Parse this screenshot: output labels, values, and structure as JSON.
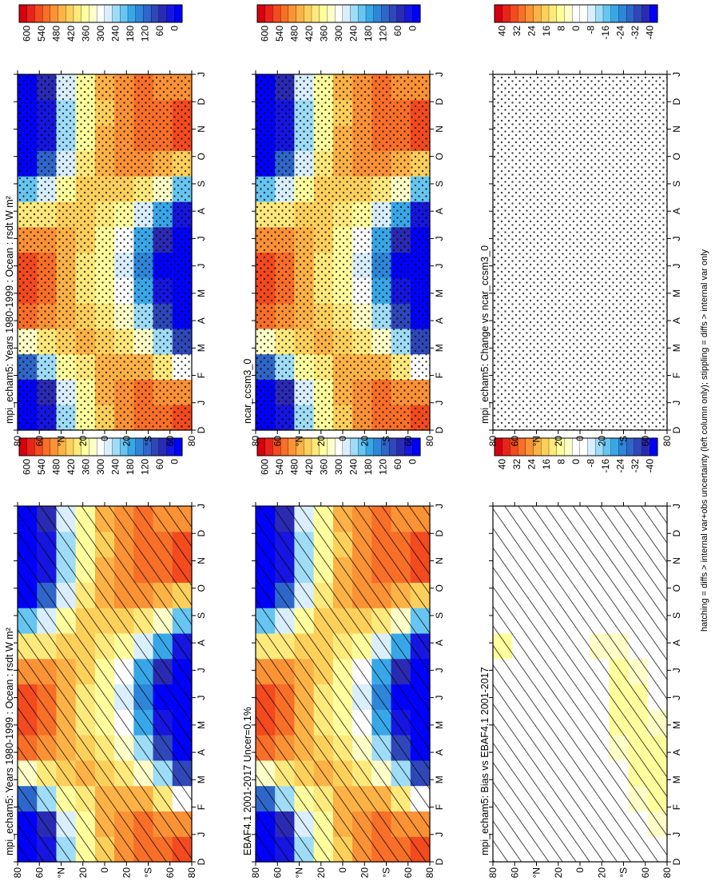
{
  "footer_note": "hatching = diffs > internal var+obs uncertainty (left column only); stippling = diffs > internal var only",
  "months": [
    "D",
    "J",
    "F",
    "M",
    "A",
    "M",
    "J",
    "J",
    "A",
    "S",
    "O",
    "N",
    "D",
    "J"
  ],
  "lat_labels": [
    "80",
    "60",
    "°N",
    "20",
    "0",
    "20",
    "°S",
    "60",
    "80"
  ],
  "abs_colorbar": {
    "labels": [
      "600",
      "540",
      "480",
      "420",
      "360",
      "300",
      "240",
      "180",
      "120",
      "60",
      "0"
    ],
    "colors": [
      "#d7000f",
      "#e8231c",
      "#f34a1e",
      "#f86f28",
      "#fa9236",
      "#fcb246",
      "#fdd05c",
      "#fee97c",
      "#ffff9e",
      "#ffffc8",
      "#ffffff",
      "#d9efff",
      "#9fdcf7",
      "#66c6f1",
      "#38a7e8",
      "#2d86d9",
      "#2f66c9",
      "#2f47b8",
      "#2a2ab3",
      "#1616e0",
      "#0000ff"
    ]
  },
  "diff_colorbar": {
    "labels": [
      "40",
      "32",
      "24",
      "16",
      "8",
      "0",
      "-8",
      "-16",
      "-24",
      "-32",
      "-40"
    ],
    "colors": [
      "#d7000f",
      "#e8231c",
      "#f34a1e",
      "#f86f28",
      "#fa9236",
      "#fcb246",
      "#fdd05c",
      "#fee97c",
      "#ffff9e",
      "#ffffc8",
      "#ffffff",
      "#ffffff",
      "#d9efff",
      "#9fdcf7",
      "#66c6f1",
      "#38a7e8",
      "#2d86d9",
      "#2f66c9",
      "#2f47b8",
      "#2a2ab3",
      "#0000ff"
    ]
  },
  "chart_data": [
    {
      "type": "heatmap",
      "panel": "left-top",
      "title": "mpi_echam5: Years 1980-1999 : Ocean : rsdt W m²",
      "field": "absolute",
      "x": [
        "D",
        "J",
        "F",
        "M",
        "A",
        "M",
        "J",
        "J",
        "A",
        "S",
        "O",
        "N",
        "D",
        "J"
      ],
      "y_range": [
        -80,
        80
      ],
      "clim": [
        0,
        600
      ],
      "overlay": "hatching",
      "lat_centers": [
        80,
        60,
        40,
        20,
        0,
        -20,
        -40,
        -60,
        -80
      ],
      "values_dec_to_jan": [
        [
          0,
          0,
          130,
          330,
          500,
          540,
          520,
          480,
          380,
          210,
          0,
          0,
          0,
          0
        ],
        [
          50,
          80,
          230,
          400,
          470,
          500,
          490,
          460,
          400,
          280,
          120,
          50,
          50,
          80
        ],
        [
          250,
          270,
          360,
          420,
          440,
          440,
          440,
          440,
          420,
          370,
          280,
          240,
          250,
          270
        ],
        [
          350,
          360,
          400,
          430,
          420,
          400,
          390,
          410,
          420,
          410,
          380,
          350,
          350,
          360
        ],
        [
          420,
          430,
          440,
          420,
          390,
          360,
          350,
          370,
          400,
          420,
          430,
          430,
          420,
          430
        ],
        [
          470,
          470,
          450,
          400,
          340,
          290,
          270,
          300,
          360,
          420,
          460,
          480,
          470,
          470
        ],
        [
          500,
          490,
          430,
          340,
          250,
          180,
          160,
          200,
          280,
          380,
          460,
          500,
          500,
          490
        ],
        [
          510,
          480,
          380,
          240,
          110,
          30,
          10,
          60,
          180,
          320,
          450,
          510,
          510,
          480
        ],
        [
          520,
          460,
          300,
          110,
          0,
          0,
          0,
          0,
          40,
          210,
          420,
          520,
          520,
          460
        ]
      ]
    },
    {
      "type": "heatmap",
      "panel": "left-middle",
      "title": "EBAF4.1 2001-2017 Uncer=0.1%",
      "field": "absolute",
      "x": [
        "D",
        "J",
        "F",
        "M",
        "A",
        "M",
        "J",
        "J",
        "A",
        "S",
        "O",
        "N",
        "D",
        "J"
      ],
      "y_range": [
        -80,
        80
      ],
      "clim": [
        0,
        600
      ],
      "overlay": "hatching",
      "lat_centers": [
        80,
        60,
        40,
        20,
        0,
        -20,
        -40,
        -60,
        -80
      ],
      "values_dec_to_jan": [
        [
          0,
          0,
          130,
          330,
          500,
          540,
          520,
          480,
          380,
          210,
          0,
          0,
          0,
          0
        ],
        [
          50,
          80,
          230,
          400,
          470,
          500,
          490,
          460,
          400,
          280,
          120,
          50,
          50,
          80
        ],
        [
          250,
          270,
          360,
          420,
          440,
          440,
          440,
          440,
          420,
          370,
          280,
          240,
          250,
          270
        ],
        [
          350,
          360,
          400,
          430,
          420,
          400,
          390,
          410,
          420,
          410,
          380,
          350,
          350,
          360
        ],
        [
          420,
          430,
          440,
          420,
          390,
          360,
          350,
          370,
          400,
          420,
          430,
          430,
          420,
          430
        ],
        [
          470,
          470,
          450,
          400,
          340,
          290,
          270,
          300,
          360,
          420,
          460,
          480,
          470,
          470
        ],
        [
          500,
          490,
          430,
          340,
          250,
          180,
          160,
          200,
          280,
          380,
          460,
          500,
          500,
          490
        ],
        [
          510,
          480,
          380,
          240,
          110,
          30,
          10,
          60,
          180,
          320,
          450,
          510,
          510,
          480
        ],
        [
          520,
          460,
          300,
          110,
          0,
          0,
          0,
          0,
          40,
          210,
          420,
          520,
          520,
          460
        ]
      ]
    },
    {
      "type": "heatmap",
      "panel": "left-bottom",
      "title": "mpi_echam5: Bias vs EBAF4.1 2001-2017",
      "field": "difference",
      "x": [
        "D",
        "J",
        "F",
        "M",
        "A",
        "M",
        "J",
        "J",
        "A",
        "S",
        "O",
        "N",
        "D",
        "J"
      ],
      "y_range": [
        -80,
        80
      ],
      "clim": [
        -40,
        40
      ],
      "overlay": "hatching",
      "lat_centers": [
        80,
        60,
        40,
        20,
        0,
        -20,
        -40,
        -60,
        -80
      ],
      "values_dec_to_jan": [
        [
          0,
          0,
          0,
          0,
          0,
          0,
          0,
          0,
          6,
          0,
          0,
          0,
          0,
          0
        ],
        [
          0,
          0,
          0,
          0,
          0,
          0,
          0,
          0,
          0,
          0,
          0,
          0,
          0,
          0
        ],
        [
          0,
          0,
          0,
          0,
          0,
          0,
          0,
          0,
          0,
          0,
          0,
          0,
          0,
          0
        ],
        [
          0,
          0,
          0,
          0,
          0,
          0,
          0,
          0,
          0,
          0,
          0,
          0,
          0,
          0
        ],
        [
          0,
          0,
          0,
          0,
          0,
          0,
          0,
          0,
          0,
          0,
          0,
          0,
          0,
          0
        ],
        [
          0,
          0,
          0,
          0,
          0,
          0,
          0,
          0,
          5,
          0,
          0,
          0,
          0,
          0
        ],
        [
          0,
          0,
          0,
          0,
          5,
          6,
          6,
          6,
          5,
          0,
          0,
          0,
          0,
          0
        ],
        [
          0,
          0,
          5,
          6,
          6,
          6,
          6,
          5,
          0,
          0,
          0,
          0,
          0,
          0
        ],
        [
          0,
          5,
          6,
          6,
          6,
          5,
          0,
          0,
          0,
          0,
          0,
          0,
          0,
          0
        ]
      ]
    },
    {
      "type": "heatmap",
      "panel": "right-top",
      "title": "mpi_echam5: Years 1980-1999 : Ocean : rsdt W m²",
      "field": "absolute",
      "x": [
        "D",
        "J",
        "F",
        "M",
        "A",
        "M",
        "J",
        "J",
        "A",
        "S",
        "O",
        "N",
        "D",
        "J"
      ],
      "y_range": [
        -80,
        80
      ],
      "clim": [
        0,
        600
      ],
      "overlay": "stippling",
      "lat_centers": [
        80,
        60,
        40,
        20,
        0,
        -20,
        -40,
        -60,
        -80
      ],
      "values_dec_to_jan": [
        [
          0,
          0,
          130,
          330,
          500,
          540,
          520,
          480,
          380,
          210,
          0,
          0,
          0,
          0
        ],
        [
          50,
          80,
          230,
          400,
          470,
          500,
          490,
          460,
          400,
          280,
          120,
          50,
          50,
          80
        ],
        [
          250,
          270,
          360,
          420,
          440,
          440,
          440,
          440,
          420,
          370,
          280,
          240,
          250,
          270
        ],
        [
          350,
          360,
          400,
          430,
          420,
          400,
          390,
          410,
          420,
          410,
          380,
          350,
          350,
          360
        ],
        [
          420,
          430,
          440,
          420,
          390,
          360,
          350,
          370,
          400,
          420,
          430,
          430,
          420,
          430
        ],
        [
          470,
          470,
          450,
          400,
          340,
          290,
          270,
          300,
          360,
          420,
          460,
          480,
          470,
          470
        ],
        [
          500,
          490,
          430,
          340,
          250,
          180,
          160,
          200,
          280,
          380,
          460,
          500,
          500,
          490
        ],
        [
          510,
          480,
          380,
          240,
          110,
          30,
          10,
          60,
          180,
          320,
          450,
          510,
          510,
          480
        ],
        [
          520,
          460,
          300,
          110,
          0,
          0,
          0,
          0,
          40,
          210,
          420,
          520,
          520,
          460
        ]
      ]
    },
    {
      "type": "heatmap",
      "panel": "right-middle",
      "title": "ncar_ccsm3_0",
      "field": "absolute",
      "x": [
        "D",
        "J",
        "F",
        "M",
        "A",
        "M",
        "J",
        "J",
        "A",
        "S",
        "O",
        "N",
        "D",
        "J"
      ],
      "y_range": [
        -80,
        80
      ],
      "clim": [
        0,
        600
      ],
      "overlay": "stippling",
      "lat_centers": [
        80,
        60,
        40,
        20,
        0,
        -20,
        -40,
        -60,
        -80
      ],
      "values_dec_to_jan": [
        [
          0,
          0,
          130,
          330,
          500,
          540,
          520,
          480,
          380,
          210,
          0,
          0,
          0,
          0
        ],
        [
          50,
          80,
          230,
          400,
          470,
          500,
          490,
          460,
          400,
          280,
          120,
          50,
          50,
          80
        ],
        [
          250,
          270,
          360,
          420,
          440,
          440,
          440,
          440,
          420,
          370,
          280,
          240,
          250,
          270
        ],
        [
          350,
          360,
          400,
          430,
          420,
          400,
          390,
          410,
          420,
          410,
          380,
          350,
          350,
          360
        ],
        [
          420,
          430,
          440,
          420,
          390,
          360,
          350,
          370,
          400,
          420,
          430,
          430,
          420,
          430
        ],
        [
          470,
          470,
          450,
          400,
          340,
          290,
          270,
          300,
          360,
          420,
          460,
          480,
          470,
          470
        ],
        [
          500,
          490,
          430,
          340,
          250,
          180,
          160,
          200,
          280,
          380,
          460,
          500,
          500,
          490
        ],
        [
          510,
          480,
          380,
          240,
          110,
          30,
          10,
          60,
          180,
          320,
          450,
          510,
          510,
          480
        ],
        [
          520,
          460,
          300,
          110,
          0,
          0,
          0,
          0,
          40,
          210,
          420,
          520,
          520,
          460
        ]
      ]
    },
    {
      "type": "heatmap",
      "panel": "right-bottom",
      "title": "mpi_echam5: Change vs ncar_ccsm3_0",
      "field": "difference",
      "x": [
        "D",
        "J",
        "F",
        "M",
        "A",
        "M",
        "J",
        "J",
        "A",
        "S",
        "O",
        "N",
        "D",
        "J"
      ],
      "y_range": [
        -80,
        80
      ],
      "clim": [
        -40,
        40
      ],
      "overlay": "stippling",
      "lat_centers": [
        80,
        60,
        40,
        20,
        0,
        -20,
        -40,
        -60,
        -80
      ],
      "values_dec_to_jan": [
        [
          0,
          0,
          0,
          0,
          0,
          0,
          0,
          0,
          0,
          0,
          0,
          0,
          0,
          0
        ],
        [
          0,
          0,
          0,
          0,
          0,
          0,
          0,
          0,
          0,
          0,
          0,
          0,
          0,
          0
        ],
        [
          0,
          0,
          0,
          0,
          0,
          0,
          0,
          0,
          0,
          0,
          0,
          0,
          0,
          0
        ],
        [
          0,
          0,
          0,
          0,
          0,
          0,
          0,
          0,
          0,
          0,
          0,
          0,
          0,
          0
        ],
        [
          0,
          0,
          0,
          0,
          0,
          0,
          0,
          0,
          0,
          0,
          0,
          0,
          0,
          0
        ],
        [
          0,
          0,
          0,
          0,
          0,
          0,
          0,
          0,
          0,
          0,
          0,
          0,
          0,
          0
        ],
        [
          0,
          0,
          0,
          0,
          0,
          0,
          0,
          0,
          0,
          0,
          0,
          0,
          0,
          0
        ],
        [
          0,
          0,
          0,
          0,
          0,
          0,
          0,
          0,
          0,
          0,
          0,
          0,
          0,
          0
        ],
        [
          0,
          0,
          0,
          0,
          0,
          0,
          0,
          0,
          0,
          0,
          0,
          0,
          0,
          0
        ]
      ]
    }
  ]
}
